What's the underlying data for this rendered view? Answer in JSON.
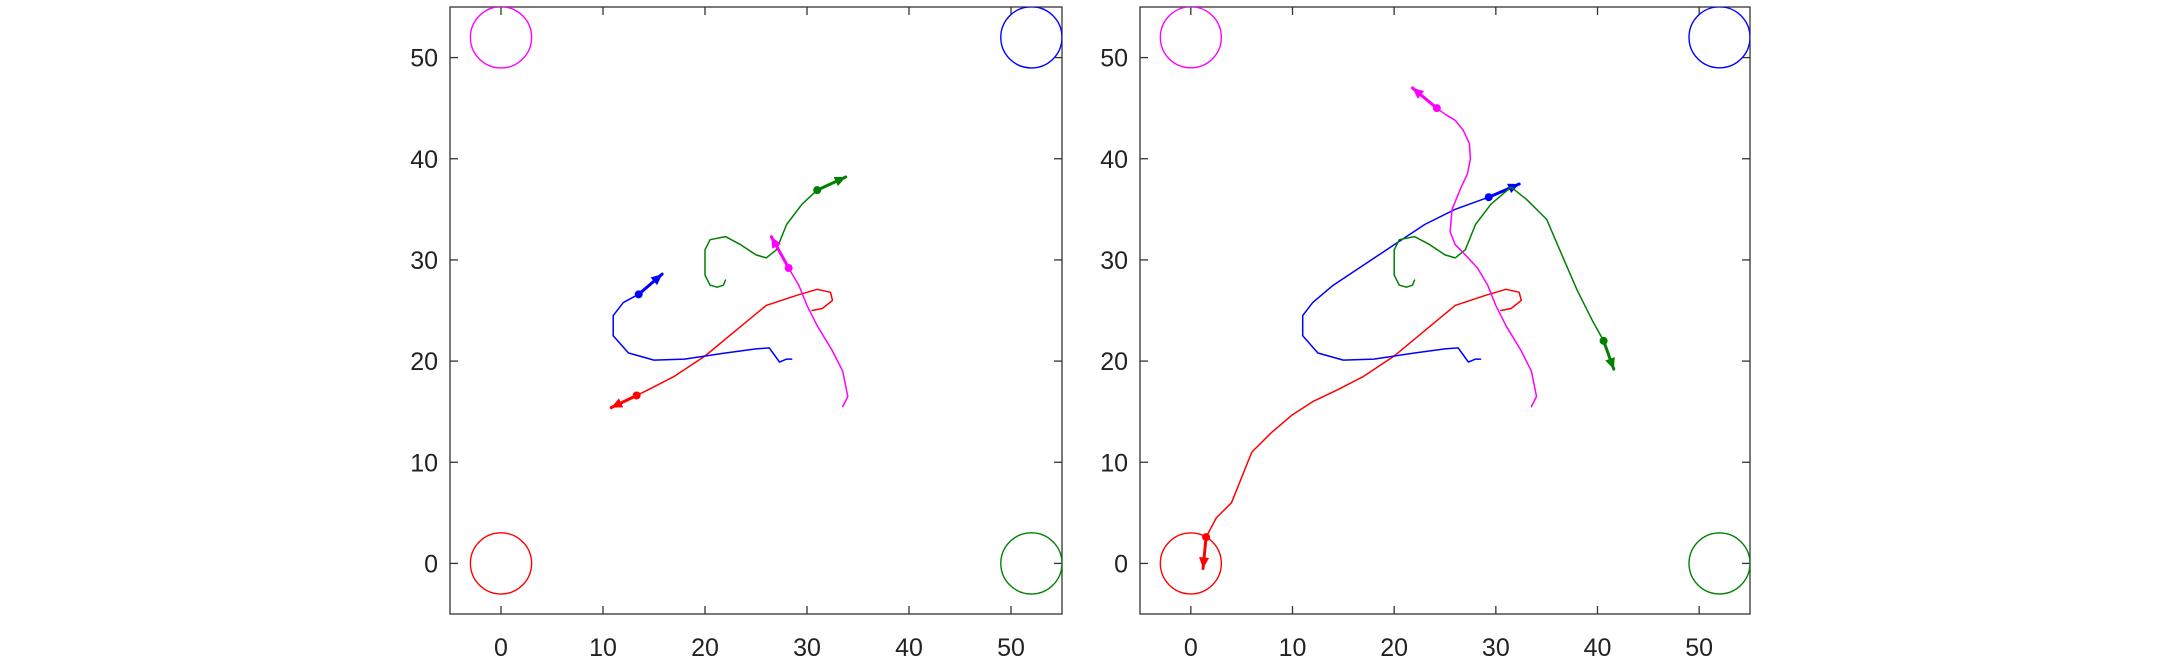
{
  "chart_data": [
    {
      "type": "line",
      "title": "",
      "xlabel": "",
      "ylabel": "",
      "xlim": [
        -5,
        55
      ],
      "ylim": [
        -5,
        55
      ],
      "xticks": [
        0,
        10,
        20,
        30,
        40,
        50
      ],
      "yticks": [
        0,
        10,
        20,
        30,
        40,
        50
      ],
      "grid": false,
      "targets": [
        {
          "name": "magenta-target",
          "color": "#ff00ff",
          "cx": 0,
          "cy": 52,
          "r": 3
        },
        {
          "name": "blue-target",
          "color": "#0000ff",
          "cx": 52,
          "cy": 52,
          "r": 3
        },
        {
          "name": "red-target",
          "color": "#ff0000",
          "cx": 0,
          "cy": 0,
          "r": 3
        },
        {
          "name": "green-target",
          "color": "#008000",
          "cx": 52,
          "cy": 0,
          "r": 3
        }
      ],
      "series": [
        {
          "color": "#ff0000",
          "x": [
            30.5,
            31.5,
            32.5,
            32.3,
            31.0,
            29.0,
            26.0,
            23.0,
            20.0,
            17.0,
            14.5,
            13.3
          ],
          "y": [
            25.0,
            25.2,
            26.0,
            26.8,
            27.1,
            26.5,
            25.5,
            23.0,
            20.5,
            18.5,
            17.2,
            16.6
          ],
          "arrow_from": [
            13.3,
            16.6
          ],
          "arrow_to": [
            10.8,
            15.4
          ]
        },
        {
          "color": "#0000ff",
          "x": [
            28.5,
            28.0,
            27.3,
            26.8,
            26.3,
            25.0,
            22.0,
            18.0,
            15.0,
            12.5,
            11.0,
            11.0,
            12.0,
            13.5
          ],
          "y": [
            20.2,
            20.2,
            19.9,
            20.6,
            21.3,
            21.2,
            20.8,
            20.2,
            20.1,
            20.8,
            22.5,
            24.5,
            25.8,
            26.6
          ],
          "arrow_from": [
            13.5,
            26.6
          ],
          "arrow_to": [
            15.8,
            28.6
          ]
        },
        {
          "color": "#008000",
          "x": [
            22.0,
            21.8,
            21.2,
            20.5,
            20.0,
            20.0,
            20.5,
            22.0,
            23.5,
            25.0,
            26.0,
            27.0,
            28.0,
            29.5,
            31.0
          ],
          "y": [
            28.0,
            27.5,
            27.3,
            27.5,
            28.5,
            31.0,
            32.0,
            32.3,
            31.5,
            30.5,
            30.2,
            31.0,
            33.5,
            35.5,
            36.9
          ],
          "arrow_from": [
            31.0,
            36.9
          ],
          "arrow_to": [
            33.8,
            38.2
          ]
        },
        {
          "color": "#ff00ff",
          "x": [
            33.5,
            34.0,
            33.8,
            33.5,
            32.5,
            31.0,
            30.0,
            29.2,
            28.2
          ],
          "y": [
            15.5,
            16.5,
            17.5,
            19.0,
            21.0,
            23.5,
            25.5,
            27.5,
            29.2
          ],
          "arrow_from": [
            28.2,
            29.2
          ],
          "arrow_to": [
            26.5,
            32.3
          ]
        }
      ]
    },
    {
      "type": "line",
      "title": "",
      "xlabel": "",
      "ylabel": "",
      "xlim": [
        -5,
        55
      ],
      "ylim": [
        -5,
        55
      ],
      "xticks": [
        0,
        10,
        20,
        30,
        40,
        50
      ],
      "yticks": [
        0,
        10,
        20,
        30,
        40,
        50
      ],
      "grid": false,
      "targets": [
        {
          "name": "magenta-target",
          "color": "#ff00ff",
          "cx": 0,
          "cy": 52,
          "r": 3
        },
        {
          "name": "blue-target",
          "color": "#0000ff",
          "cx": 52,
          "cy": 52,
          "r": 3
        },
        {
          "name": "red-target",
          "color": "#ff0000",
          "cx": 0,
          "cy": 0,
          "r": 3
        },
        {
          "name": "green-target",
          "color": "#008000",
          "cx": 52,
          "cy": 0,
          "r": 3
        }
      ],
      "series": [
        {
          "color": "#ff0000",
          "x": [
            30.5,
            31.5,
            32.5,
            32.3,
            31.0,
            29.0,
            26.0,
            23.0,
            20.0,
            17.0,
            14.5,
            12.0,
            10.0,
            8.0,
            6.0,
            4.0,
            2.5,
            1.5
          ],
          "y": [
            25.0,
            25.2,
            26.0,
            26.8,
            27.1,
            26.5,
            25.5,
            23.0,
            20.5,
            18.5,
            17.2,
            16.0,
            14.7,
            13.0,
            11.0,
            6.0,
            4.5,
            2.6
          ],
          "arrow_from": [
            1.5,
            2.6
          ],
          "arrow_to": [
            1.2,
            -0.5
          ]
        },
        {
          "color": "#0000ff",
          "x": [
            28.5,
            28.0,
            27.3,
            26.8,
            26.3,
            25.0,
            22.0,
            18.0,
            15.0,
            12.5,
            11.0,
            11.0,
            12.0,
            14.0,
            17.0,
            20.0,
            23.0,
            26.0,
            29.3
          ],
          "y": [
            20.2,
            20.2,
            19.9,
            20.6,
            21.3,
            21.2,
            20.8,
            20.2,
            20.1,
            20.8,
            22.5,
            24.5,
            25.8,
            27.5,
            29.5,
            31.5,
            33.5,
            35.0,
            36.2
          ],
          "arrow_from": [
            29.3,
            36.2
          ],
          "arrow_to": [
            32.3,
            37.5
          ]
        },
        {
          "color": "#008000",
          "x": [
            22.0,
            21.8,
            21.2,
            20.5,
            20.0,
            20.0,
            20.5,
            22.0,
            23.5,
            25.0,
            26.0,
            27.0,
            28.0,
            29.5,
            31.5,
            33.0,
            35.0,
            36.5,
            38.0,
            39.5,
            40.6
          ],
          "y": [
            28.0,
            27.5,
            27.3,
            27.5,
            28.5,
            31.0,
            32.0,
            32.3,
            31.5,
            30.5,
            30.2,
            31.0,
            33.5,
            35.5,
            37.2,
            36.0,
            34.0,
            30.5,
            27.0,
            24.0,
            22.0
          ],
          "arrow_from": [
            40.6,
            22.0
          ],
          "arrow_to": [
            41.6,
            19.2
          ]
        },
        {
          "color": "#ff00ff",
          "x": [
            33.5,
            34.0,
            33.8,
            33.5,
            32.5,
            31.0,
            30.0,
            29.2,
            28.2,
            27.0,
            26.0,
            25.5,
            25.7,
            26.5,
            27.2,
            27.5,
            27.4,
            26.8,
            26.0,
            25.0,
            24.2
          ],
          "y": [
            15.5,
            16.5,
            17.5,
            19.0,
            21.0,
            23.5,
            25.5,
            27.5,
            29.2,
            30.5,
            31.5,
            32.8,
            35.0,
            37.0,
            38.5,
            40.0,
            41.5,
            42.8,
            43.8,
            44.4,
            45.0
          ],
          "arrow_from": [
            24.2,
            45.0
          ],
          "arrow_to": [
            21.8,
            47.0
          ]
        }
      ]
    }
  ]
}
